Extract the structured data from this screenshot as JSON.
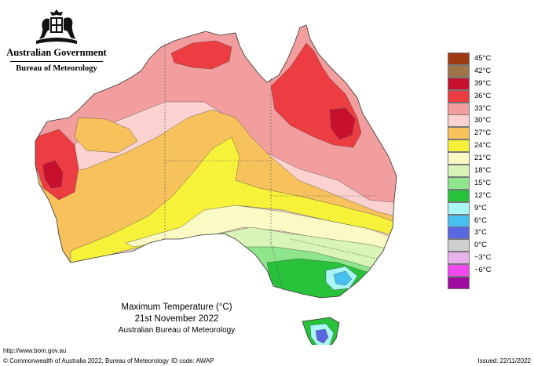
{
  "header": {
    "government": "Australian Government",
    "bureau": "Bureau of Meteorology"
  },
  "map": {
    "title": "Maximum Temperature (°C)",
    "date": "21st November 2022",
    "agency": "Australian Bureau of Meteorology",
    "region": "Australia",
    "colors": {
      "deg42plus": "#a0561e",
      "deg39": "#c8102e",
      "deg36": "#ec3d42",
      "deg33": "#f39e9e",
      "deg30": "#fbd2cf",
      "deg27": "#f7c25c",
      "deg24": "#f6f23a",
      "deg21": "#fbf9c4",
      "deg18": "#d8f4b6",
      "deg15": "#8fe58b",
      "deg12": "#27c23a",
      "deg9": "#a8f6f6",
      "deg6": "#47c0f0",
      "deg3": "#5a67e3",
      "ocean": "#ffffff"
    }
  },
  "legend": {
    "items": [
      {
        "label": "45°C",
        "color": "#9c3a12"
      },
      {
        "label": "42°C",
        "color": "#a0744a"
      },
      {
        "label": "39°C",
        "color": "#c8102e"
      },
      {
        "label": "36°C",
        "color": "#ec3d42"
      },
      {
        "label": "33°C",
        "color": "#f39e9e"
      },
      {
        "label": "30°C",
        "color": "#fbd2cf"
      },
      {
        "label": "27°C",
        "color": "#f7c25c"
      },
      {
        "label": "24°C",
        "color": "#f6f23a"
      },
      {
        "label": "21°C",
        "color": "#fbf9c4"
      },
      {
        "label": "18°C",
        "color": "#d8f4b6"
      },
      {
        "label": "15°C",
        "color": "#8fe58b"
      },
      {
        "label": "12°C",
        "color": "#27c23a"
      },
      {
        "label": "9°C",
        "color": "#a8f6f6"
      },
      {
        "label": "6°C",
        "color": "#47c0f0"
      },
      {
        "label": "3°C",
        "color": "#5a67e3"
      },
      {
        "label": "0°C",
        "color": "#cfcfcf"
      },
      {
        "label": "−3°C",
        "color": "#eab2ea"
      },
      {
        "label": "−6°C",
        "color": "#f049ef"
      },
      {
        "label": "",
        "color": "#9c0aa0"
      }
    ]
  },
  "footer": {
    "url": "http://www.bom.gov.au",
    "copyright": "© Commonwealth of Australia 2022, Bureau of Meteorology",
    "id_code": "ID code: AWAP",
    "issued": "Issued: 22/11/2022"
  }
}
